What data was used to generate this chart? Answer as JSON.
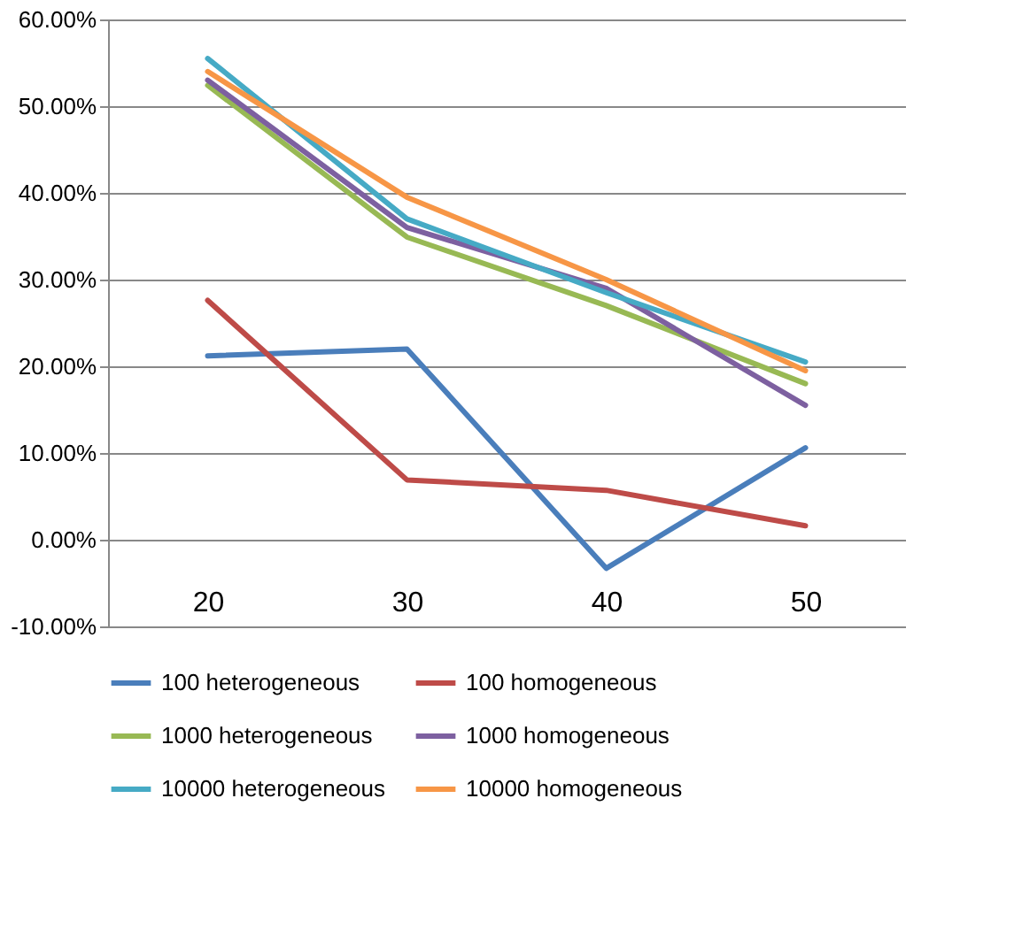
{
  "chart_data": {
    "type": "line",
    "categories": [
      "20",
      "30",
      "40",
      "50"
    ],
    "series": [
      {
        "name": "100 heterogeneous",
        "color": "#4a7ebb",
        "values": [
          21.2,
          22.0,
          -3.3,
          10.6
        ]
      },
      {
        "name": "100 homogeneous",
        "color": "#be4b48",
        "values": [
          27.6,
          6.9,
          5.7,
          1.6
        ]
      },
      {
        "name": "1000 heterogeneous",
        "color": "#98b954",
        "values": [
          52.4,
          34.9,
          27.0,
          18.0
        ]
      },
      {
        "name": "1000 homogeneous",
        "color": "#7d60a0",
        "values": [
          53.0,
          36.0,
          29.0,
          15.5
        ]
      },
      {
        "name": "10000 heterogeneous",
        "color": "#46aac5",
        "values": [
          55.5,
          37.0,
          28.5,
          20.5
        ]
      },
      {
        "name": "10000 homogeneous",
        "color": "#f79646",
        "values": [
          54.0,
          39.5,
          30.0,
          19.5
        ]
      }
    ],
    "ylim": [
      -10,
      60
    ],
    "yticks": [
      {
        "value": -10,
        "label": "-10.00%"
      },
      {
        "value": 0,
        "label": "0.00%"
      },
      {
        "value": 10,
        "label": "10.00%"
      },
      {
        "value": 20,
        "label": "20.00%"
      },
      {
        "value": 30,
        "label": "30.00%"
      },
      {
        "value": 40,
        "label": "40.00%"
      },
      {
        "value": 50,
        "label": "50.00%"
      },
      {
        "value": 60,
        "label": "60.00%"
      }
    ],
    "grid": "y",
    "legend": "bottom",
    "marker": "none",
    "line_style": "solid"
  }
}
